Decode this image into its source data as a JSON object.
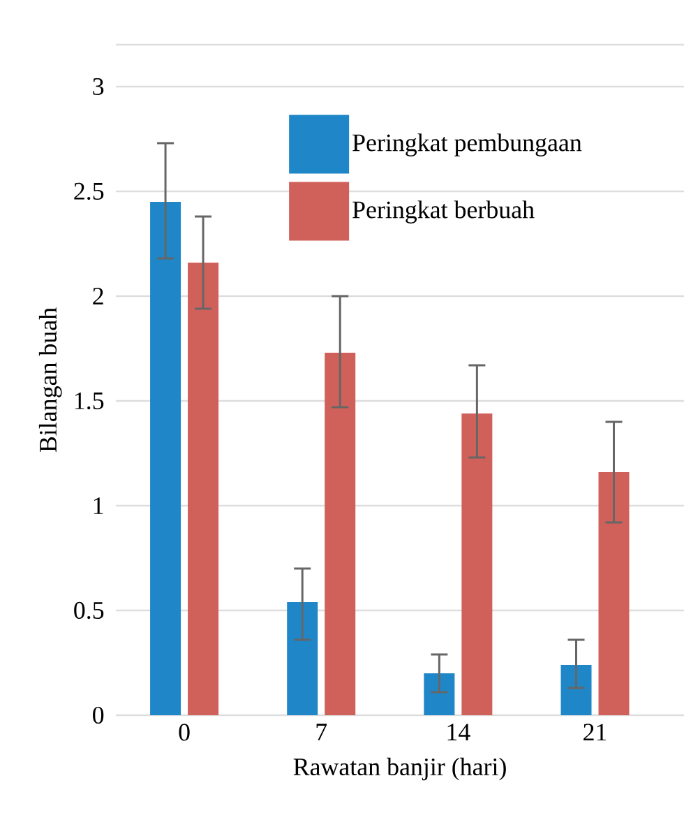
{
  "chart_data": {
    "type": "bar",
    "xlabel": "Rawatan banjir (hari)",
    "ylabel": "Bilangan buah",
    "categories": [
      "0",
      "7",
      "14",
      "21"
    ],
    "series": [
      {
        "name": "Peringkat pembungaan",
        "color": "#1f86c8",
        "values": [
          2.45,
          0.54,
          0.2,
          0.24
        ],
        "errors": [
          [
            2.18,
            2.73
          ],
          [
            0.36,
            0.7
          ],
          [
            0.11,
            0.29
          ],
          [
            0.13,
            0.36
          ]
        ]
      },
      {
        "name": "Peringkat berbuah",
        "color": "#d0605a",
        "values": [
          2.16,
          1.73,
          1.44,
          1.16
        ],
        "errors": [
          [
            1.94,
            2.38
          ],
          [
            1.47,
            2.0
          ],
          [
            1.23,
            1.67
          ],
          [
            0.92,
            1.4
          ]
        ]
      }
    ],
    "ylim": [
      0,
      3.2
    ],
    "yticks": [
      0,
      0.5,
      1,
      1.5,
      2,
      2.5,
      3,
      {
        "value": 3.2,
        "label": null
      }
    ],
    "grid": "y",
    "legend": "top right"
  }
}
